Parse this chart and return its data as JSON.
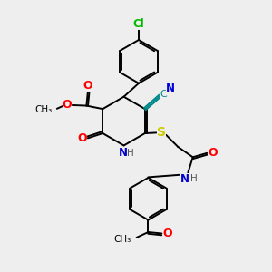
{
  "bg_color": "#eeeeee",
  "atom_colors": {
    "O": "#ff0000",
    "N": "#0000cc",
    "S": "#cccc00",
    "Cl": "#00bb00",
    "C": "#000000",
    "H": "#555555",
    "CN_C": "#008888",
    "CN_N": "#0000dd"
  },
  "bond_color": "#000000",
  "bond_width": 1.4,
  "figsize": [
    3.0,
    3.0
  ],
  "dpi": 100
}
